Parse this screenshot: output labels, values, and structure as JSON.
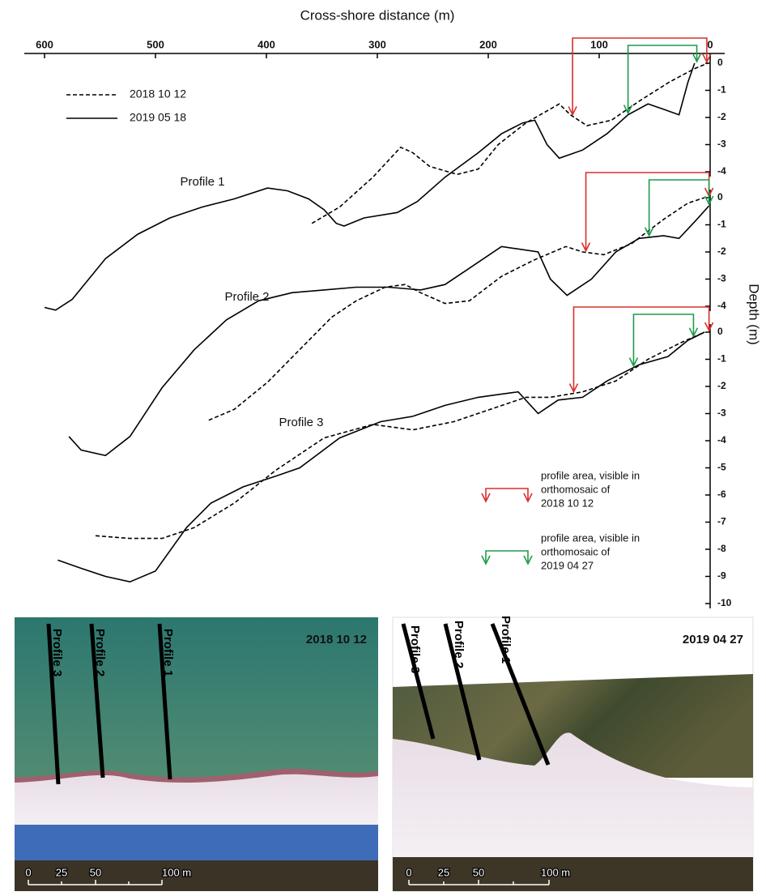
{
  "chart_data": [
    {
      "type": "line",
      "xlabel": "Cross-shore distance (m)",
      "xlim": [
        600,
        0
      ],
      "xticks": [
        600,
        500,
        400,
        300,
        200,
        100,
        0
      ],
      "ylim": [
        -10,
        0
      ],
      "yticks": [
        0,
        -1,
        -2,
        -3,
        -4
      ],
      "annotation": "Profile 1",
      "series": [
        {
          "name": "2018 10 12",
          "color": "#000000",
          "style": "dashed",
          "x": [
            359,
            334,
            304,
            279,
            268,
            253,
            228,
            209,
            191,
            166,
            136,
            126,
            111,
            89,
            64,
            37,
            14,
            2
          ],
          "values": [
            -5.9,
            -5.3,
            -4.2,
            -3.1,
            -3.3,
            -3.8,
            -4.1,
            -3.9,
            -3.0,
            -2.2,
            -1.5,
            -1.9,
            -2.3,
            -2.1,
            -1.4,
            -0.7,
            -0.2,
            0
          ]
        },
        {
          "name": "2019 05 18",
          "color": "#000000",
          "style": "solid",
          "x": [
            600,
            590,
            575,
            545,
            516,
            487,
            458,
            429,
            399,
            381,
            362,
            348,
            337,
            330,
            312,
            282,
            264,
            239,
            209,
            188,
            169,
            158,
            147,
            136,
            115,
            93,
            74,
            56,
            42,
            28,
            20,
            14
          ],
          "values": [
            -9.0,
            -9.1,
            -8.7,
            -7.2,
            -6.3,
            -5.7,
            -5.3,
            -5.0,
            -4.6,
            -4.7,
            -5.0,
            -5.4,
            -5.9,
            -6.0,
            -5.7,
            -5.5,
            -5.1,
            -4.2,
            -3.3,
            -2.6,
            -2.2,
            -2.1,
            -3.0,
            -3.5,
            -3.2,
            -2.6,
            -1.9,
            -1.5,
            -1.7,
            -1.9,
            -0.7,
            0
          ]
        }
      ],
      "ranges": [
        {
          "color": "#d7302c",
          "x": [
            124,
            3
          ]
        },
        {
          "color": "#1f9a4a",
          "x": [
            74,
            12
          ]
        }
      ],
      "range_legend": [
        {
          "color": "#d7302c",
          "label_lines": [
            "profile area, visible in",
            "orthomosaic of",
            "2018 10 12"
          ]
        },
        {
          "color": "#1f9a4a",
          "label_lines": [
            "profile area, visible in",
            "orthomosaic of",
            "2019 04 27"
          ]
        }
      ]
    },
    {
      "type": "line",
      "xlim": [
        600,
        0
      ],
      "ylim": [
        -10,
        0
      ],
      "yticks": [
        0,
        -1,
        -2,
        -3,
        -4
      ],
      "annotation": "Profile 2",
      "ylabel": "Depth (m)",
      "series": [
        {
          "color": "#000000",
          "style": "dashed",
          "x": [
            452,
            429,
            399,
            370,
            341,
            319,
            293,
            275,
            261,
            239,
            217,
            188,
            159,
            130,
            115,
            96,
            71,
            42,
            20,
            5
          ],
          "values": [
            -8.2,
            -7.8,
            -6.8,
            -5.6,
            -4.4,
            -3.8,
            -3.3,
            -3.2,
            -3.5,
            -3.9,
            -3.8,
            -2.9,
            -2.3,
            -1.8,
            -2.0,
            -2.1,
            -1.7,
            -0.8,
            -0.2,
            0
          ]
        },
        {
          "color": "#000000",
          "style": "solid",
          "x": [
            578,
            567,
            545,
            523,
            494,
            465,
            436,
            407,
            377,
            348,
            319,
            290,
            261,
            239,
            217,
            188,
            155,
            144,
            129,
            107,
            85,
            64,
            42,
            28,
            12,
            1
          ],
          "values": [
            -8.8,
            -9.3,
            -9.5,
            -8.8,
            -7.0,
            -5.6,
            -4.5,
            -3.8,
            -3.5,
            -3.4,
            -3.3,
            -3.3,
            -3.4,
            -3.2,
            -2.6,
            -1.8,
            -2.0,
            -3.0,
            -3.6,
            -3.0,
            -2.0,
            -1.5,
            -1.4,
            -1.5,
            -0.8,
            -0.3
          ]
        }
      ],
      "ranges": [
        {
          "color": "#d7302c",
          "x": [
            112,
            1
          ]
        },
        {
          "color": "#1f9a4a",
          "x": [
            55,
            1
          ]
        }
      ]
    },
    {
      "type": "line",
      "xlim": [
        600,
        0
      ],
      "ylim": [
        -10,
        0
      ],
      "yticks": [
        0,
        -1,
        -2,
        -3,
        -4,
        -5,
        -6,
        -7,
        -8,
        -9,
        -10
      ],
      "annotation": "Profile 3",
      "series": [
        {
          "color": "#000000",
          "style": "dashed",
          "x": [
            554,
            523,
            494,
            465,
            429,
            392,
            348,
            304,
            268,
            231,
            195,
            166,
            144,
            115,
            85,
            56,
            27,
            5
          ],
          "values": [
            -7.5,
            -7.6,
            -7.6,
            -7.2,
            -6.3,
            -5.1,
            -3.9,
            -3.4,
            -3.6,
            -3.3,
            -2.8,
            -2.4,
            -2.4,
            -2.2,
            -1.8,
            -1.0,
            -0.4,
            0
          ]
        },
        {
          "color": "#000000",
          "style": "solid",
          "x": [
            588,
            567,
            545,
            523,
            500,
            472,
            450,
            421,
            391,
            370,
            334,
            297,
            268,
            239,
            209,
            173,
            155,
            137,
            115,
            93,
            64,
            38,
            20,
            5
          ],
          "values": [
            -8.4,
            -8.7,
            -9.0,
            -9.2,
            -8.8,
            -7.2,
            -6.3,
            -5.7,
            -5.3,
            -5.0,
            -3.9,
            -3.3,
            -3.1,
            -2.7,
            -2.4,
            -2.2,
            -3.0,
            -2.5,
            -2.4,
            -1.8,
            -1.2,
            -0.9,
            -0.3,
            0
          ]
        }
      ],
      "ranges": [
        {
          "color": "#d7302c",
          "x": [
            123,
            1
          ]
        },
        {
          "color": "#1f9a4a",
          "x": [
            69,
            15
          ]
        }
      ]
    }
  ],
  "photos": [
    {
      "date": "2018 10 12",
      "profile_labels": [
        "Profile 3",
        "Profile 2",
        "Profile 1"
      ],
      "scale_labels": [
        "0",
        "25",
        "50",
        "100 m"
      ]
    },
    {
      "date": "2019 04 27",
      "profile_labels": [
        "Profile 3",
        "Profile 2",
        "Profile 1"
      ],
      "scale_labels": [
        "0",
        "25",
        "50",
        "100 m"
      ]
    }
  ]
}
